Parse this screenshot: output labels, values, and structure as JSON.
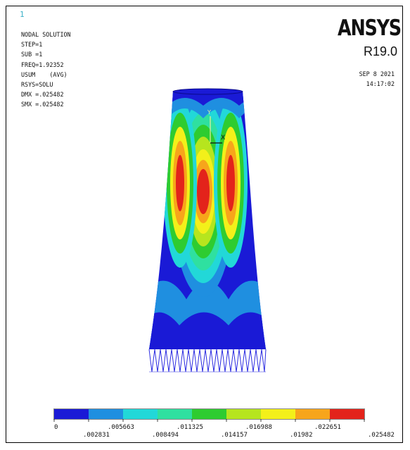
{
  "window_number": "1",
  "header": {
    "title": "NODAL SOLUTION",
    "step": "STEP=1",
    "sub": "SUB =1",
    "freq": "FREQ=1.92352",
    "result": "USUM",
    "avg": "(AVG)",
    "rsys": "RSYS=SOLU",
    "dmx": "DMX =.025482",
    "smx": "SMX =.025482"
  },
  "brand": {
    "logo": "ANSYS",
    "version": "R19.0"
  },
  "timestamp": {
    "date": "SEP  8 2021",
    "time": "14:17:02"
  },
  "triad": {
    "x_label": "X",
    "y_label": "Y"
  },
  "legend": {
    "colors": [
      "#1a1ad6",
      "#1f8fe0",
      "#22d8d8",
      "#2fe0a0",
      "#2ecc30",
      "#b6e51e",
      "#f3f01a",
      "#f7a51b",
      "#e3231b"
    ],
    "labels_top": [
      "0",
      ".005663",
      ".011325",
      ".016988",
      ".022651"
    ],
    "labels_bottom": [
      ".002831",
      ".008494",
      ".014157",
      ".01982",
      ".025482"
    ]
  }
}
